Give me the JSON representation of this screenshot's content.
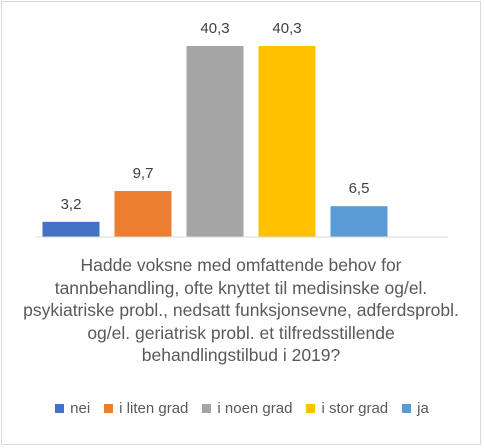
{
  "chart_data": {
    "type": "bar",
    "categories": [
      "nei",
      "i liten grad",
      "i noen grad",
      "i stor grad",
      "ja"
    ],
    "values": [
      3.2,
      9.7,
      40.3,
      40.3,
      6.5
    ],
    "data_labels": [
      "3,2",
      "9,7",
      "40,3",
      "40,3",
      "6,5"
    ],
    "colors": [
      "#4472c4",
      "#ed7d31",
      "#a5a5a5",
      "#ffc000",
      "#5b9bd5"
    ],
    "title": "",
    "xlabel": "Hadde voksne med omfattende behov for tannbehandling, ofte knyttet til medisinske og/el. psykiatriske probl., nedsatt funksjonsevne, adferdsprobl. og/el. geriatrisk probl. et tilfredsstillende behandlingstilbud i 2019?",
    "ylabel": "",
    "ylim": [
      0,
      40.3
    ],
    "grid": false,
    "legend_position": "bottom"
  }
}
